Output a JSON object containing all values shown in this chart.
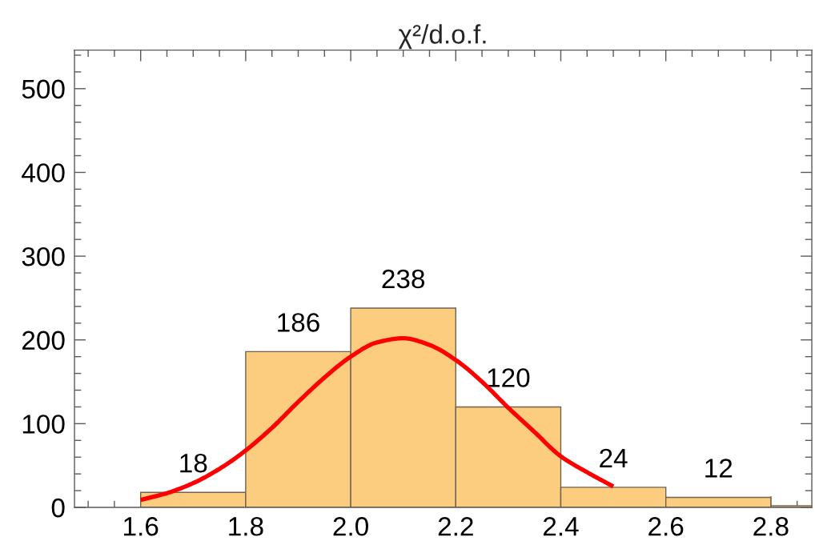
{
  "chart_data": {
    "type": "histogram",
    "title": "χ²/d.o.f.",
    "series": [
      {
        "bins": [
          1.6,
          1.8,
          2.0,
          2.2,
          2.4,
          2.6,
          2.8,
          3.0
        ],
        "values": [
          18,
          186,
          238,
          120,
          24,
          12,
          2
        ],
        "value_labels": [
          "18",
          "186",
          "238",
          "120",
          "24",
          "12",
          null
        ],
        "color": "#fccd7e"
      },
      {
        "type": "line",
        "x": [
          1.6,
          1.65,
          1.7,
          1.75,
          1.8,
          1.85,
          1.9,
          1.95,
          2.0,
          2.05,
          2.1,
          2.15,
          2.2,
          2.25,
          2.3,
          2.35,
          2.4,
          2.45,
          2.5
        ],
        "values": [
          9,
          17,
          29,
          46,
          68,
          95,
          126,
          155,
          180,
          197,
          202,
          194,
          176,
          150,
          119,
          90,
          61,
          42,
          25
        ],
        "color": "#ff0000"
      }
    ],
    "xlim": [
      1.474,
      2.878
    ],
    "ylim": [
      0,
      546
    ],
    "xticks": [
      {
        "value": 1.5,
        "label": null
      },
      {
        "value": 1.55,
        "label": null
      },
      1.6,
      {
        "value": 1.65,
        "label": null
      },
      {
        "value": 1.7,
        "label": null
      },
      {
        "value": 1.75,
        "label": null
      },
      1.8,
      {
        "value": 1.85,
        "label": null
      },
      {
        "value": 1.9,
        "label": null
      },
      {
        "value": 1.95,
        "label": null
      },
      {
        "value": 2,
        "label": "2.0"
      },
      {
        "value": 2.05,
        "label": null
      },
      {
        "value": 2.1,
        "label": null
      },
      {
        "value": 2.15,
        "label": null
      },
      2.2,
      {
        "value": 2.25,
        "label": null
      },
      {
        "value": 2.3,
        "label": null
      },
      {
        "value": 2.35,
        "label": null
      },
      2.4,
      {
        "value": 2.45,
        "label": null
      },
      {
        "value": 2.5,
        "label": null
      },
      {
        "value": 2.55,
        "label": null
      },
      2.6,
      {
        "value": 2.65,
        "label": null
      },
      {
        "value": 2.7,
        "label": null
      },
      {
        "value": 2.75,
        "label": null
      },
      2.8,
      {
        "value": 2.85,
        "label": null
      }
    ],
    "yticks": [
      0,
      {
        "value": 20,
        "label": null
      },
      {
        "value": 40,
        "label": null
      },
      {
        "value": 60,
        "label": null
      },
      {
        "value": 80,
        "label": null
      },
      100,
      {
        "value": 120,
        "label": null
      },
      {
        "value": 140,
        "label": null
      },
      {
        "value": 160,
        "label": null
      },
      {
        "value": 180,
        "label": null
      },
      200,
      {
        "value": 220,
        "label": null
      },
      {
        "value": 240,
        "label": null
      },
      {
        "value": 260,
        "label": null
      },
      {
        "value": 280,
        "label": null
      },
      300,
      {
        "value": 320,
        "label": null
      },
      {
        "value": 340,
        "label": null
      },
      {
        "value": 360,
        "label": null
      },
      {
        "value": 380,
        "label": null
      },
      400,
      {
        "value": 420,
        "label": null
      },
      {
        "value": 440,
        "label": null
      },
      {
        "value": 460,
        "label": null
      },
      {
        "value": 480,
        "label": null
      },
      500,
      {
        "value": 520,
        "label": null
      },
      {
        "value": 540,
        "label": null
      }
    ]
  }
}
